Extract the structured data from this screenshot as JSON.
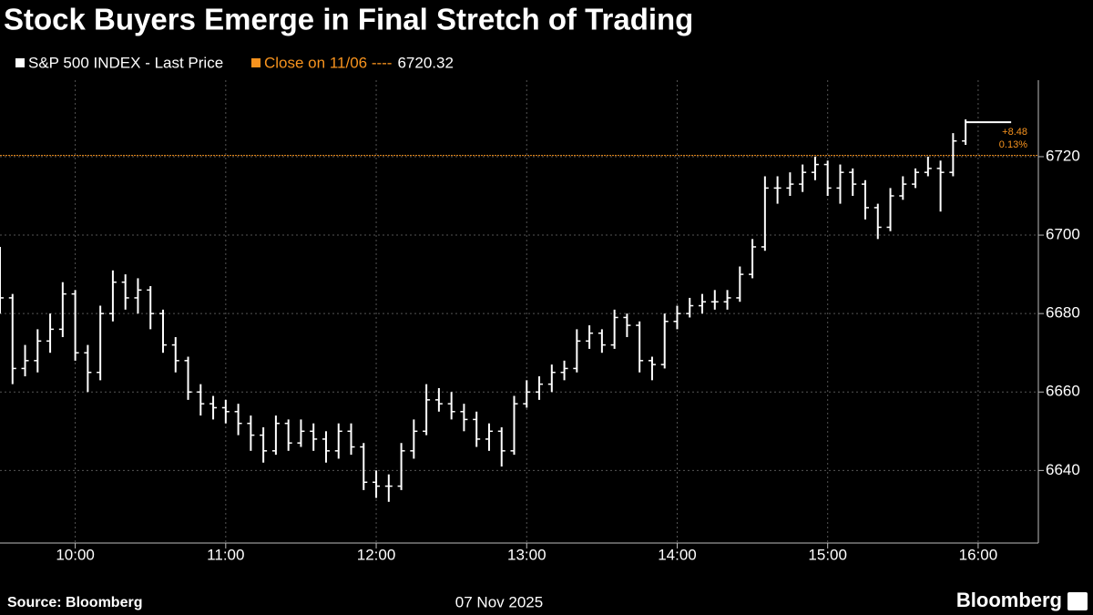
{
  "chart_data": {
    "type": "ohlc",
    "title": "Stock Buyers Emerge in Final Stretch of Trading",
    "series_name": "S&P 500 INDEX - Last Price",
    "color": "#ffffff",
    "reference": {
      "name": "Close on 11/06 ----",
      "value": 6720.32,
      "color": "#f7931e"
    },
    "change_labels": [
      "+8.48",
      "0.13%"
    ],
    "x_label": "07 Nov 2025",
    "source": "Source: Bloomberg",
    "brand": "Bloomberg",
    "x": [
      "09:30",
      "09:35",
      "09:40",
      "09:45",
      "09:50",
      "09:55",
      "10:00",
      "10:05",
      "10:10",
      "10:15",
      "10:20",
      "10:25",
      "10:30",
      "10:35",
      "10:40",
      "10:45",
      "10:50",
      "10:55",
      "11:00",
      "11:05",
      "11:10",
      "11:15",
      "11:20",
      "11:25",
      "11:30",
      "11:35",
      "11:40",
      "11:45",
      "11:50",
      "11:55",
      "12:00",
      "12:05",
      "12:10",
      "12:15",
      "12:20",
      "12:25",
      "12:30",
      "12:35",
      "12:40",
      "12:45",
      "12:50",
      "12:55",
      "13:00",
      "13:05",
      "13:10",
      "13:15",
      "13:20",
      "13:25",
      "13:30",
      "13:35",
      "13:40",
      "13:45",
      "13:50",
      "13:55",
      "14:00",
      "14:05",
      "14:10",
      "14:15",
      "14:20",
      "14:25",
      "14:30",
      "14:35",
      "14:40",
      "14:45",
      "14:50",
      "14:55",
      "15:00",
      "15:05",
      "15:10",
      "15:15",
      "15:20",
      "15:25",
      "15:30",
      "15:35",
      "15:40",
      "15:45",
      "15:50",
      "15:55"
    ],
    "open": [
      6687,
      6684,
      6666,
      6668,
      6673,
      6676,
      6685,
      6670,
      6665,
      6680,
      6688,
      6684,
      6686,
      6680,
      6672,
      6668,
      6660,
      6657,
      6656,
      6655,
      6652,
      6649,
      6645,
      6652,
      6647,
      6650,
      6648,
      6645,
      6650,
      6646,
      6637,
      6636,
      6636,
      6645,
      6650,
      6658,
      6657,
      6655,
      6653,
      6648,
      6650,
      6645,
      6657,
      6660,
      6662,
      6665,
      6666,
      6673,
      6675,
      6672,
      6679,
      6677,
      6668,
      6667,
      6678,
      6680,
      6682,
      6683,
      6683,
      6684,
      6690,
      6697,
      6712,
      6712,
      6713,
      6716,
      6718,
      6712,
      6716,
      6713,
      6707,
      6702,
      6710,
      6713,
      6716,
      6717,
      6716,
      6724
    ],
    "high": [
      6697,
      6685,
      6672,
      6676,
      6680,
      6688,
      6686,
      6672,
      6682,
      6691,
      6690,
      6689,
      6687,
      6681,
      6674,
      6669,
      6662,
      6659,
      6658,
      6657,
      6654,
      6651,
      6654,
      6653,
      6653,
      6652,
      6650,
      6652,
      6652,
      6647,
      6640,
      6639,
      6647,
      6653,
      6662,
      6661,
      6660,
      6657,
      6655,
      6652,
      6651,
      6659,
      6663,
      6664,
      6667,
      6668,
      6676,
      6677,
      6676,
      6681,
      6680,
      6678,
      6669,
      6680,
      6682,
      6684,
      6685,
      6686,
      6686,
      6692,
      6699,
      6715,
      6715,
      6716,
      6718,
      6720,
      6719,
      6718,
      6717,
      6714,
      6708,
      6712,
      6715,
      6717,
      6720,
      6719,
      6726,
      6729.5
    ],
    "low": [
      6680,
      6662,
      6664,
      6665,
      6670,
      6674,
      6668,
      6660,
      6663,
      6678,
      6681,
      6680,
      6676,
      6670,
      6665,
      6658,
      6654,
      6653,
      6652,
      6649,
      6645,
      6642,
      6644,
      6645,
      6646,
      6645,
      6642,
      6643,
      6644,
      6635,
      6633,
      6632,
      6635,
      6643,
      6649,
      6655,
      6653,
      6650,
      6646,
      6645,
      6641,
      6644,
      6656,
      6658,
      6660,
      6663,
      6665,
      6671,
      6670,
      6671,
      6674,
      6665,
      6663,
      6666,
      6676,
      6679,
      6680,
      6681,
      6681,
      6683,
      6689,
      6696,
      6708,
      6710,
      6711,
      6714,
      6710,
      6708,
      6710,
      6704,
      6699,
      6701,
      6709,
      6712,
      6715,
      6706,
      6715,
      6723
    ],
    "close": [
      6684,
      6666,
      6668,
      6673,
      6676,
      6685,
      6670,
      6665,
      6680,
      6688,
      6684,
      6686,
      6680,
      6672,
      6668,
      6660,
      6657,
      6656,
      6655,
      6652,
      6649,
      6645,
      6652,
      6647,
      6650,
      6648,
      6645,
      6650,
      6646,
      6637,
      6636,
      6636,
      6645,
      6650,
      6658,
      6657,
      6655,
      6653,
      6648,
      6650,
      6645,
      6657,
      6660,
      6662,
      6665,
      6666,
      6673,
      6675,
      6672,
      6679,
      6677,
      6668,
      6667,
      6678,
      6680,
      6682,
      6683,
      6683,
      6684,
      6690,
      6697,
      6712,
      6712,
      6713,
      6716,
      6718,
      6712,
      6716,
      6713,
      6707,
      6702,
      6710,
      6713,
      6716,
      6717,
      6716,
      6724,
      6728.8
    ],
    "xlim": [
      "09:30",
      "16:24"
    ],
    "xticks": [
      "10:00",
      "11:00",
      "12:00",
      "13:00",
      "14:00",
      "15:00",
      "16:00"
    ],
    "ylim": [
      6621.5,
      6739.5
    ],
    "yticks": [
      6640,
      6660,
      6680,
      6700,
      6720
    ],
    "grid": true
  }
}
